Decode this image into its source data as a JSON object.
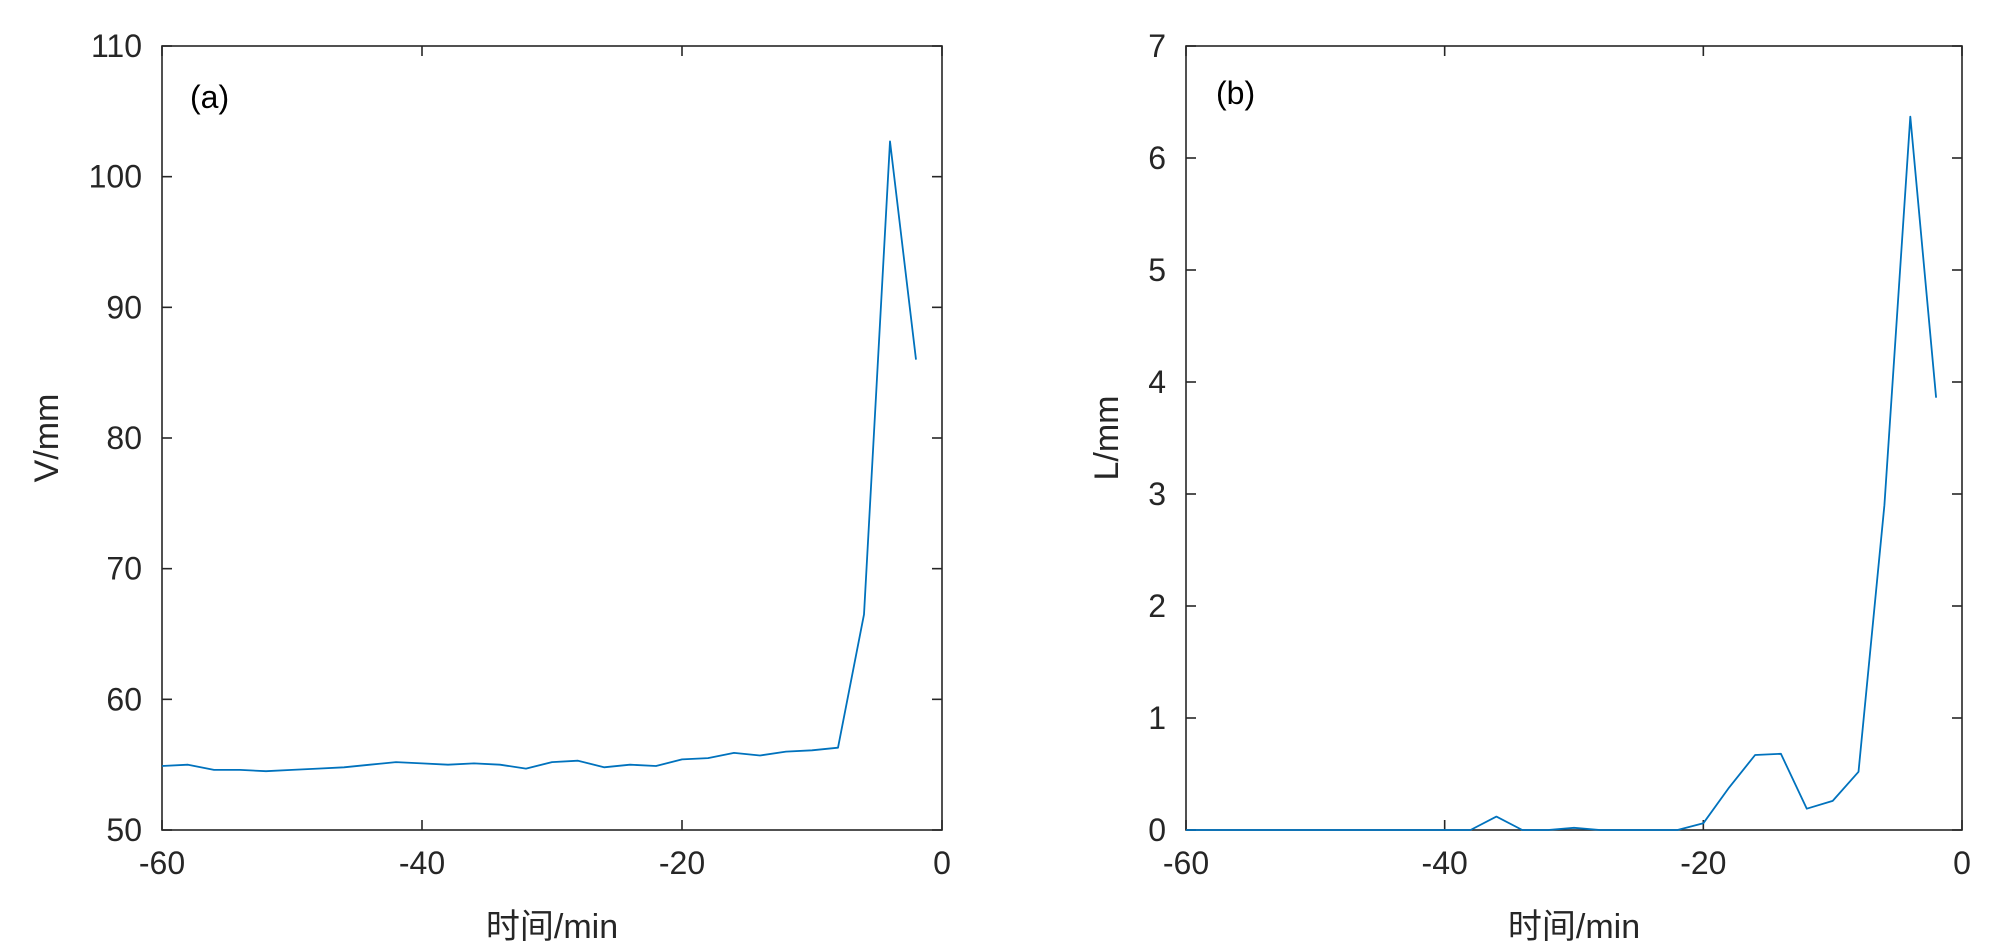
{
  "chart_data": [
    {
      "type": "line",
      "panel_label": "(a)",
      "title": "",
      "xlabel": "时间/min",
      "ylabel": "V/mm",
      "xlim": [
        -60,
        0
      ],
      "ylim": [
        50,
        110
      ],
      "xticks": [
        -60,
        -40,
        -20,
        0
      ],
      "yticks": [
        50,
        60,
        70,
        80,
        90,
        100,
        110
      ],
      "grid": false,
      "series": [
        {
          "color": "#0072BD",
          "x": [
            -60,
            -58,
            -56,
            -54,
            -52,
            -50,
            -48,
            -46,
            -44,
            -42,
            -40,
            -38,
            -36,
            -34,
            -32,
            -30,
            -28,
            -26,
            -24,
            -22,
            -20,
            -18,
            -16,
            -14,
            -12,
            -10,
            -8,
            -6,
            -4,
            -2
          ],
          "y": [
            54.9,
            55.0,
            54.6,
            54.6,
            54.5,
            54.6,
            54.7,
            54.8,
            55.0,
            55.2,
            55.1,
            55.0,
            55.1,
            55.0,
            54.7,
            55.2,
            55.3,
            54.8,
            55.0,
            54.9,
            55.4,
            55.5,
            55.9,
            55.7,
            56.0,
            56.1,
            56.3,
            66.5,
            102.7,
            86.0
          ]
        }
      ]
    },
    {
      "type": "line",
      "panel_label": "(b)",
      "title": "",
      "xlabel": "时间/min",
      "ylabel": "L/mm",
      "xlim": [
        -60,
        0
      ],
      "ylim": [
        0,
        7
      ],
      "xticks": [
        -60,
        -40,
        -20,
        0
      ],
      "yticks": [
        0,
        1,
        2,
        3,
        4,
        5,
        6,
        7
      ],
      "grid": false,
      "series": [
        {
          "color": "#0072BD",
          "x": [
            -60,
            -58,
            -56,
            -54,
            -52,
            -50,
            -48,
            -46,
            -44,
            -42,
            -40,
            -38,
            -36,
            -34,
            -32,
            -30,
            -28,
            -26,
            -24,
            -22,
            -20,
            -18,
            -16,
            -14,
            -12,
            -10,
            -8,
            -6,
            -4,
            -2
          ],
          "y": [
            0,
            0,
            0,
            0,
            0,
            0,
            0,
            0,
            0,
            0,
            0,
            0,
            0.12,
            0,
            0,
            0.02,
            0,
            0,
            0,
            0,
            0.06,
            0.38,
            0.67,
            0.68,
            0.19,
            0.26,
            0.52,
            2.9,
            6.37,
            3.86
          ]
        }
      ]
    }
  ]
}
